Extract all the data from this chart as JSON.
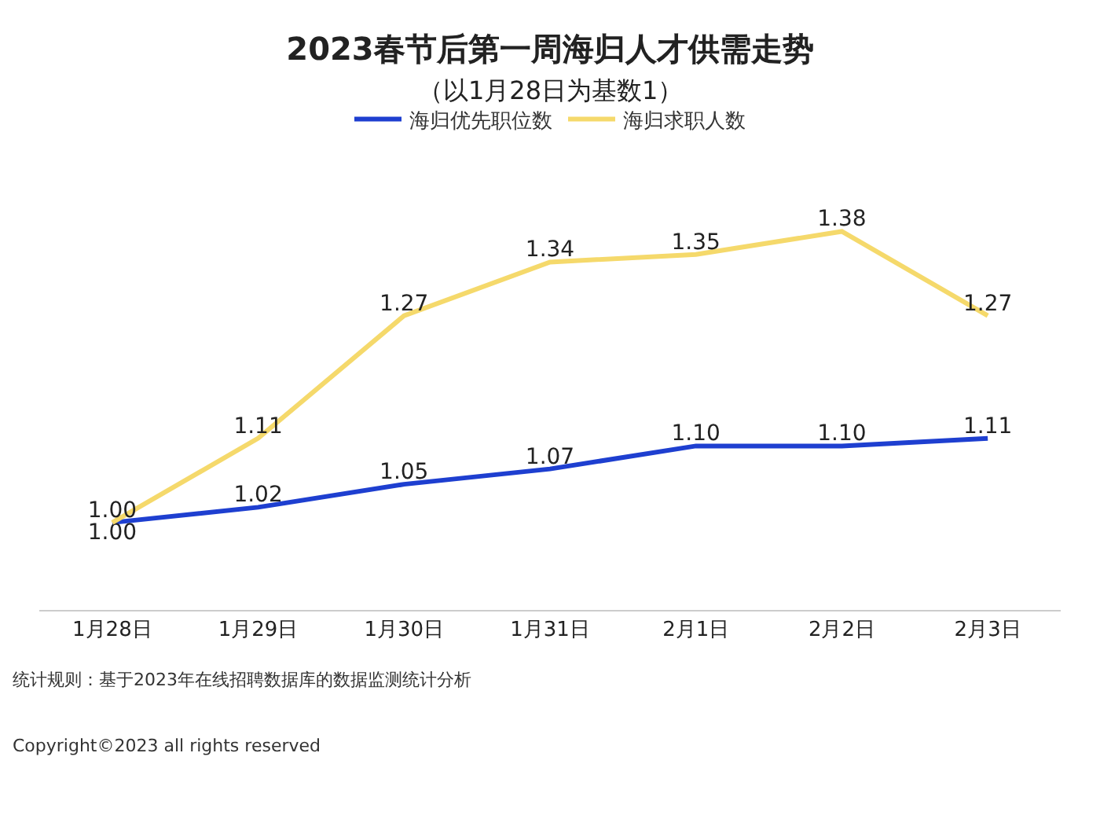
{
  "chart_data": {
    "type": "line",
    "title": "2023春节后第一周海归人才供需走势",
    "subtitle": "（以1月28日为基数1）",
    "categories": [
      "1月28日",
      "1月29日",
      "1月30日",
      "1月31日",
      "2月1日",
      "2月2日",
      "2月3日"
    ],
    "series": [
      {
        "name": "海归优先职位数",
        "color": "#1e3fd0",
        "values": [
          1.0,
          1.02,
          1.05,
          1.07,
          1.1,
          1.1,
          1.11
        ],
        "value_labels": [
          "1.00",
          "1.02",
          "1.05",
          "1.07",
          "1.10",
          "1.10",
          "1.11"
        ]
      },
      {
        "name": "海归求职人数",
        "color": "#f5d96b",
        "values": [
          1.0,
          1.11,
          1.27,
          1.34,
          1.35,
          1.38,
          1.27
        ],
        "value_labels": [
          "1.00",
          "1.11",
          "1.27",
          "1.34",
          "1.35",
          "1.38",
          "1.27"
        ]
      }
    ],
    "legend": "top",
    "marker": "none",
    "line_style": "solid",
    "annotations": [
      "统计规则：基于2023年在线招聘数据库的数据监测统计分析",
      "Copyright©2023 all rights reserved"
    ]
  }
}
